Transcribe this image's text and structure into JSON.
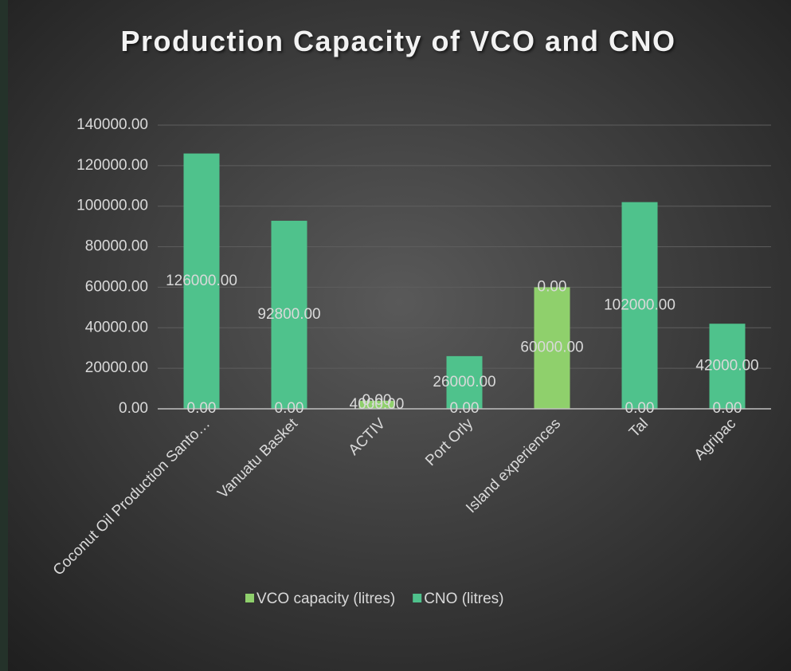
{
  "chart_data": {
    "type": "stacked_bar",
    "title": "Production Capacity of VCO and CNO",
    "categories": [
      "Coconut Oil Production Santo…",
      "Vanuatu Basket",
      "ACTIV",
      "Port Orly",
      "Island experiences",
      "Tal",
      "Agripac"
    ],
    "series": [
      {
        "name": "VCO capacity (litres)",
        "color": "#8fd06c",
        "values": [
          0,
          0,
          4000,
          0,
          60000,
          0,
          0
        ],
        "value_labels": [
          "0.00",
          "0.00",
          "4000.00",
          "0.00",
          "60000.00",
          "0.00",
          "0.00"
        ]
      },
      {
        "name": "CNO (litres)",
        "color": "#4fc28c",
        "values": [
          126000,
          92800,
          0,
          26000,
          0,
          102000,
          42000
        ],
        "value_labels": [
          "126000.00",
          "92800.00",
          "0.00",
          "26000.00",
          "0.00",
          "102000.00",
          "42000.00"
        ]
      }
    ],
    "ylim": [
      0,
      140000
    ],
    "yticks": [
      {
        "value": 0,
        "label": "0.00"
      },
      {
        "value": 20000,
        "label": "20000.00"
      },
      {
        "value": 40000,
        "label": "40000.00"
      },
      {
        "value": 60000,
        "label": "60000.00"
      },
      {
        "value": 80000,
        "label": "80000.00"
      },
      {
        "value": 100000,
        "label": "100000.00"
      },
      {
        "value": 120000,
        "label": "120000.00"
      },
      {
        "value": 140000,
        "label": "140000.00"
      }
    ],
    "grid": true,
    "legend": "bottom"
  }
}
